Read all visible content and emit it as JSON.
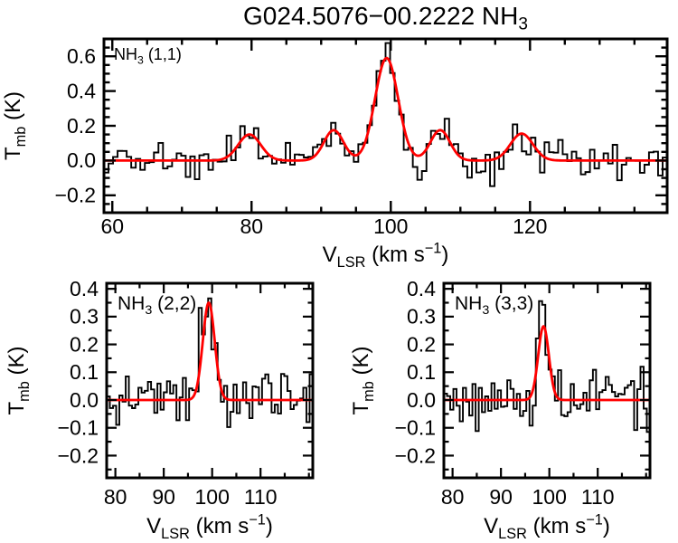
{
  "title": {
    "text": "G024.5076−00.2222 NH",
    "subscript": "3"
  },
  "colors": {
    "background": "#ffffff",
    "axes": "#000000",
    "spectrum": "#000000",
    "fit": "#ff0000"
  },
  "chart_data": [
    {
      "type": "line",
      "panel": "NH3 (1,1)",
      "label_parts": [
        {
          "t": "NH"
        },
        {
          "t": "3",
          "sub": true
        },
        {
          "t": " (1,1)"
        }
      ],
      "xlabel": "VLSR (km s−1)",
      "xlabel_parts": [
        {
          "t": "V"
        },
        {
          "t": "LSR",
          "sub": true
        },
        {
          "t": " (km s"
        },
        {
          "t": "−1",
          "sup": true
        },
        {
          "t": ")"
        }
      ],
      "ylabel": "Tmb (K)",
      "ylabel_parts": [
        {
          "t": "T"
        },
        {
          "t": "mb",
          "sub": true
        },
        {
          "t": " (K)"
        }
      ],
      "xlim": [
        58.8,
        139.7
      ],
      "ylim": [
        -0.3,
        0.7
      ],
      "xticks": {
        "values": [
          60,
          80,
          100,
          120
        ],
        "labels": [
          "60",
          "80",
          "100",
          "120"
        ]
      },
      "xminor_step": 5,
      "yticks": {
        "values": [
          -0.2,
          0.0,
          0.2,
          0.4,
          0.6
        ],
        "labels": [
          "−0.2",
          "0.0",
          "0.2",
          "0.4",
          "0.6"
        ]
      },
      "yminor_step": 0.05,
      "baseline_K": 0.0,
      "n_channels": 124,
      "noise_rms_K": 0.055,
      "noise_seed": 20,
      "fit_gaussians": [
        {
          "center_kms": 79.7,
          "amp_K": 0.15,
          "fwhm_kms": 3.8
        },
        {
          "center_kms": 91.8,
          "amp_K": 0.175,
          "fwhm_kms": 3.3
        },
        {
          "center_kms": 99.4,
          "amp_K": 0.59,
          "fwhm_kms": 3.9
        },
        {
          "center_kms": 107.1,
          "amp_K": 0.175,
          "fwhm_kms": 3.3
        },
        {
          "center_kms": 118.8,
          "amp_K": 0.155,
          "fwhm_kms": 3.8
        }
      ]
    },
    {
      "type": "line",
      "panel": "NH3 (2,2)",
      "label_parts": [
        {
          "t": "NH"
        },
        {
          "t": "3",
          "sub": true
        },
        {
          "t": " (2,2)"
        }
      ],
      "xlabel": "VLSR (km s−1)",
      "xlabel_parts": [
        {
          "t": "V"
        },
        {
          "t": "LSR",
          "sub": true
        },
        {
          "t": " (km s"
        },
        {
          "t": "−1",
          "sup": true
        },
        {
          "t": ")"
        }
      ],
      "ylabel": "Tmb (K)",
      "ylabel_parts": [
        {
          "t": "T"
        },
        {
          "t": "mb",
          "sub": true
        },
        {
          "t": " (K)"
        }
      ],
      "xlim": [
        78.2,
        120.8
      ],
      "ylim": [
        -0.28,
        0.42
      ],
      "xticks": {
        "values": [
          80,
          90,
          100,
          110
        ],
        "labels": [
          "80",
          "90",
          "100",
          "110"
        ]
      },
      "xminor_step": 5,
      "yticks": {
        "values": [
          -0.2,
          -0.1,
          0.0,
          0.1,
          0.2,
          0.3,
          0.4
        ],
        "labels": [
          "−0.2",
          "−0.1",
          "0.0",
          "0.1",
          "0.2",
          "0.3",
          "0.4"
        ]
      },
      "yminor_step": 0.05,
      "baseline_K": 0.0,
      "n_channels": 65,
      "noise_rms_K": 0.058,
      "noise_seed": 5,
      "fit_gaussians": [
        {
          "center_kms": 99.3,
          "amp_K": 0.35,
          "fwhm_kms": 2.9
        }
      ]
    },
    {
      "type": "line",
      "panel": "NH3 (3,3)",
      "label_parts": [
        {
          "t": "NH"
        },
        {
          "t": "3",
          "sub": true
        },
        {
          "t": " (3,3)"
        }
      ],
      "xlabel": "VLSR (km s−1)",
      "xlabel_parts": [
        {
          "t": "V"
        },
        {
          "t": "LSR",
          "sub": true
        },
        {
          "t": " (km s"
        },
        {
          "t": "−1",
          "sup": true
        },
        {
          "t": ")"
        }
      ],
      "ylabel": "Tmb (K)",
      "ylabel_parts": [
        {
          "t": "T"
        },
        {
          "t": "mb",
          "sub": true
        },
        {
          "t": " (K)"
        }
      ],
      "xlim": [
        78.2,
        120.8
      ],
      "ylim": [
        -0.28,
        0.42
      ],
      "xticks": {
        "values": [
          80,
          90,
          100,
          110
        ],
        "labels": [
          "80",
          "90",
          "100",
          "110"
        ]
      },
      "xminor_step": 5,
      "yticks": {
        "values": [
          -0.2,
          -0.1,
          0.0,
          0.1,
          0.2,
          0.3,
          0.4
        ],
        "labels": [
          "−0.2",
          "−0.1",
          "0.0",
          "0.1",
          "0.2",
          "0.3",
          "0.4"
        ]
      },
      "yminor_step": 0.05,
      "baseline_K": 0.0,
      "n_channels": 65,
      "noise_rms_K": 0.058,
      "noise_seed": 9,
      "fit_gaussians": [
        {
          "center_kms": 98.8,
          "amp_K": 0.265,
          "fwhm_kms": 2.6
        }
      ]
    }
  ]
}
